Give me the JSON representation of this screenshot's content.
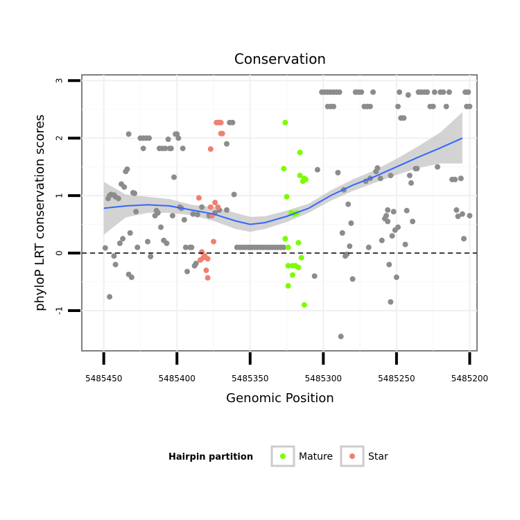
{
  "chart_data": {
    "type": "scatter",
    "title": "Conservation",
    "xlabel": "Genomic Position",
    "ylabel": "phyloP LRT conservation scores",
    "xlim": [
      5485465,
      5485195
    ],
    "ylim": [
      -1.7,
      3.1
    ],
    "x_ticks": [
      5485450,
      5485400,
      5485350,
      5485300,
      5485250,
      5485200
    ],
    "x_tick_labels": [
      "5485450",
      "5485400",
      "5485350",
      "5485300",
      "5485250",
      "5485200"
    ],
    "y_ticks": [
      -1,
      0,
      1,
      2,
      3
    ],
    "y_tick_labels": [
      "-1",
      "0",
      "1",
      "2",
      "3"
    ],
    "reference_line": {
      "y": 0,
      "style": "dashed"
    },
    "colors": {
      "other": "#8c8c8c",
      "mature": "#7cfc00",
      "star": "#f08070",
      "smooth": "#3366ff",
      "ribbon": "#c8c8c8"
    },
    "legend": {
      "title": "Hairpin partition",
      "entries": [
        {
          "label": "Mature",
          "color": "#7cfc00"
        },
        {
          "label": "Star",
          "color": "#f08070"
        }
      ]
    },
    "smooth": {
      "x": [
        5485450,
        5485435,
        5485420,
        5485405,
        5485390,
        5485375,
        5485360,
        5485350,
        5485340,
        5485325,
        5485310,
        5485295,
        5485280,
        5485265,
        5485250,
        5485235,
        5485220,
        5485205
      ],
      "y": [
        0.78,
        0.82,
        0.84,
        0.82,
        0.75,
        0.68,
        0.56,
        0.5,
        0.53,
        0.64,
        0.78,
        1.0,
        1.18,
        1.33,
        1.5,
        1.67,
        1.83,
        2.0
      ],
      "lower": [
        0.32,
        0.62,
        0.7,
        0.7,
        0.66,
        0.56,
        0.42,
        0.37,
        0.42,
        0.54,
        0.7,
        0.91,
        1.08,
        1.22,
        1.36,
        1.48,
        1.56,
        1.56
      ],
      "upper": [
        1.24,
        1.02,
        0.98,
        0.94,
        0.84,
        0.8,
        0.7,
        0.63,
        0.64,
        0.74,
        0.86,
        1.09,
        1.28,
        1.44,
        1.64,
        1.86,
        2.1,
        2.45
      ]
    },
    "series": [
      {
        "name": "Other",
        "points": [
          [
            5485447,
            0.95
          ],
          [
            5485446,
            1.0
          ],
          [
            5485445,
            1.02
          ],
          [
            5485443,
            1.01
          ],
          [
            5485442,
            0.98
          ],
          [
            5485449,
            0.09
          ],
          [
            5485446,
            -0.76
          ],
          [
            5485443,
            -0.05
          ],
          [
            5485442,
            -0.2
          ],
          [
            5485440,
            0.95
          ],
          [
            5485439,
            0.17
          ],
          [
            5485438,
            1.2
          ],
          [
            5485437,
            0.25
          ],
          [
            5485436,
            1.15
          ],
          [
            5485435,
            1.42
          ],
          [
            5485434,
            1.46
          ],
          [
            5485433,
            2.07
          ],
          [
            5485433,
            -0.37
          ],
          [
            5485431,
            -0.42
          ],
          [
            5485432,
            0.35
          ],
          [
            5485430,
            1.05
          ],
          [
            5485429,
            1.04
          ],
          [
            5485427,
            0.1
          ],
          [
            5485428,
            0.72
          ],
          [
            5485425,
            2.0
          ],
          [
            5485423,
            2.0
          ],
          [
            5485421,
            2.0
          ],
          [
            5485419,
            2.0
          ],
          [
            5485423,
            1.82
          ],
          [
            5485420,
            0.2
          ],
          [
            5485418,
            -0.06
          ],
          [
            5485415,
            0.65
          ],
          [
            5485414,
            0.74
          ],
          [
            5485413,
            0.7
          ],
          [
            5485412,
            1.82
          ],
          [
            5485410,
            1.82
          ],
          [
            5485408,
            1.82
          ],
          [
            5485411,
            0.45
          ],
          [
            5485409,
            0.22
          ],
          [
            5485407,
            0.17
          ],
          [
            5485406,
            1.98
          ],
          [
            5485405,
            1.82
          ],
          [
            5485404,
            1.82
          ],
          [
            5485403,
            0.65
          ],
          [
            5485402,
            1.32
          ],
          [
            5485401,
            2.07
          ],
          [
            5485400,
            2.07
          ],
          [
            5485399,
            2.0
          ],
          [
            5485398,
            0.8
          ],
          [
            5485397,
            0.78
          ],
          [
            5485396,
            1.82
          ],
          [
            5485395,
            0.58
          ],
          [
            5485394,
            0.1
          ],
          [
            5485393,
            -0.32
          ],
          [
            5485391,
            0.1
          ],
          [
            5485390,
            0.1
          ],
          [
            5485389,
            0.68
          ],
          [
            5485388,
            -0.22
          ],
          [
            5485387,
            -0.18
          ],
          [
            5485386,
            0.67
          ],
          [
            5485383,
            0.8
          ],
          [
            5485378,
            0.65
          ],
          [
            5485374,
            0.7
          ],
          [
            5485371,
            0.75
          ],
          [
            5485366,
            1.9
          ],
          [
            5485366,
            0.75
          ],
          [
            5485364,
            2.27
          ],
          [
            5485362,
            2.27
          ],
          [
            5485361,
            1.02
          ],
          [
            5485359,
            0.1
          ],
          [
            5485357,
            0.1
          ],
          [
            5485355,
            0.1
          ],
          [
            5485353,
            0.1
          ],
          [
            5485351,
            0.1
          ],
          [
            5485349,
            0.1
          ],
          [
            5485347,
            0.1
          ],
          [
            5485345,
            0.1
          ],
          [
            5485343,
            0.1
          ],
          [
            5485341,
            0.1
          ],
          [
            5485339,
            0.1
          ],
          [
            5485337,
            0.1
          ],
          [
            5485335,
            0.1
          ],
          [
            5485333,
            0.1
          ],
          [
            5485331,
            0.1
          ],
          [
            5485329,
            0.1
          ],
          [
            5485327,
            0.1
          ],
          [
            5485306,
            -0.4
          ],
          [
            5485304,
            1.45
          ],
          [
            5485301,
            2.8
          ],
          [
            5485299,
            2.8
          ],
          [
            5485297,
            2.8
          ],
          [
            5485295,
            2.8
          ],
          [
            5485293,
            2.8
          ],
          [
            5485291,
            2.8
          ],
          [
            5485289,
            2.8
          ],
          [
            5485297,
            2.55
          ],
          [
            5485295,
            2.55
          ],
          [
            5485293,
            2.55
          ],
          [
            5485290,
            1.4
          ],
          [
            5485288,
            -1.45
          ],
          [
            5485287,
            0.35
          ],
          [
            5485286,
            1.1
          ],
          [
            5485285,
            -0.05
          ],
          [
            5485284,
            -0.02
          ],
          [
            5485283,
            0.85
          ],
          [
            5485282,
            0.12
          ],
          [
            5485281,
            0.52
          ],
          [
            5485280,
            -0.45
          ],
          [
            5485278,
            2.8
          ],
          [
            5485276,
            2.8
          ],
          [
            5485274,
            2.8
          ],
          [
            5485272,
            2.55
          ],
          [
            5485270,
            2.55
          ],
          [
            5485268,
            2.55
          ],
          [
            5485271,
            1.25
          ],
          [
            5485269,
            0.1
          ],
          [
            5485268,
            1.3
          ],
          [
            5485266,
            2.8
          ],
          [
            5485264,
            1.42
          ],
          [
            5485263,
            1.48
          ],
          [
            5485261,
            1.3
          ],
          [
            5485260,
            0.22
          ],
          [
            5485258,
            0.6
          ],
          [
            5485257,
            0.65
          ],
          [
            5485256,
            0.75
          ],
          [
            5485256,
            0.55
          ],
          [
            5485255,
            -0.2
          ],
          [
            5485254,
            -0.85
          ],
          [
            5485254,
            1.35
          ],
          [
            5485253,
            0.3
          ],
          [
            5485252,
            0.72
          ],
          [
            5485251,
            0.4
          ],
          [
            5485250,
            -0.42
          ],
          [
            5485249,
            0.45
          ],
          [
            5485249,
            2.55
          ],
          [
            5485248,
            2.8
          ],
          [
            5485247,
            2.35
          ],
          [
            5485246,
            2.35
          ],
          [
            5485245,
            2.35
          ],
          [
            5485244,
            0.15
          ],
          [
            5485243,
            0.74
          ],
          [
            5485242,
            2.75
          ],
          [
            5485241,
            1.35
          ],
          [
            5485240,
            1.22
          ],
          [
            5485239,
            0.55
          ],
          [
            5485237,
            1.47
          ],
          [
            5485236,
            1.47
          ],
          [
            5485235,
            2.8
          ],
          [
            5485233,
            2.8
          ],
          [
            5485231,
            2.8
          ],
          [
            5485229,
            2.8
          ],
          [
            5485227,
            2.55
          ],
          [
            5485225,
            2.55
          ],
          [
            5485224,
            2.8
          ],
          [
            5485222,
            1.5
          ],
          [
            5485220,
            2.8
          ],
          [
            5485218,
            2.8
          ],
          [
            5485216,
            2.55
          ],
          [
            5485214,
            2.8
          ],
          [
            5485212,
            1.28
          ],
          [
            5485210,
            1.28
          ],
          [
            5485209,
            0.75
          ],
          [
            5485208,
            0.64
          ],
          [
            5485206,
            1.3
          ],
          [
            5485205,
            0.68
          ],
          [
            5485204,
            0.25
          ],
          [
            5485203,
            2.8
          ],
          [
            5485201,
            2.8
          ],
          [
            5485202,
            2.55
          ],
          [
            5485200,
            2.55
          ],
          [
            5485200,
            0.65
          ]
        ]
      },
      {
        "name": "Mature",
        "points": [
          [
            5485326,
            2.27
          ],
          [
            5485327,
            1.47
          ],
          [
            5485326,
            0.25
          ],
          [
            5485325,
            0.98
          ],
          [
            5485324,
            0.1
          ],
          [
            5485324,
            -0.22
          ],
          [
            5485324,
            -0.57
          ],
          [
            5485322,
            0.7
          ],
          [
            5485321,
            -0.22
          ],
          [
            5485321,
            -0.38
          ],
          [
            5485320,
            0.68
          ],
          [
            5485319,
            -0.22
          ],
          [
            5485318,
            0.7
          ],
          [
            5485317,
            0.18
          ],
          [
            5485317,
            -0.25
          ],
          [
            5485316,
            1.35
          ],
          [
            5485316,
            1.75
          ],
          [
            5485315,
            -0.08
          ],
          [
            5485314,
            1.25
          ],
          [
            5485313,
            1.3
          ],
          [
            5485312,
            1.28
          ],
          [
            5485313,
            -0.9
          ]
        ]
      },
      {
        "name": "Star",
        "points": [
          [
            5485385,
            0.96
          ],
          [
            5485384,
            -0.12
          ],
          [
            5485383,
            0.02
          ],
          [
            5485382,
            -0.08
          ],
          [
            5485381,
            -0.05
          ],
          [
            5485380,
            -0.3
          ],
          [
            5485379,
            -0.1
          ],
          [
            5485379,
            -0.43
          ],
          [
            5485377,
            1.81
          ],
          [
            5485377,
            0.8
          ],
          [
            5485376,
            0.65
          ],
          [
            5485375,
            0.2
          ],
          [
            5485374,
            0.88
          ],
          [
            5485373,
            2.27
          ],
          [
            5485372,
            2.27
          ],
          [
            5485371,
            2.27
          ],
          [
            5485370,
            2.27
          ],
          [
            5485372,
            0.8
          ],
          [
            5485370,
            2.08
          ],
          [
            5485369,
            2.08
          ]
        ]
      }
    ]
  }
}
